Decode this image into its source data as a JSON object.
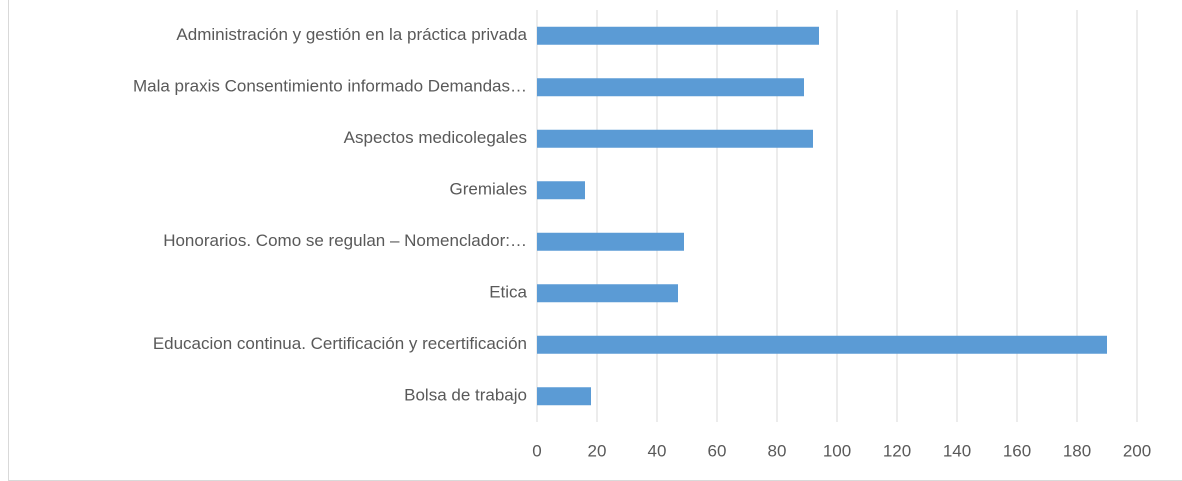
{
  "chart_data": {
    "type": "bar",
    "orientation": "horizontal",
    "categories": [
      "Administración y gestión en la práctica privada",
      "Mala praxis Consentimiento informado Demandas…",
      "Aspectos medicolegales",
      "Gremiales",
      "Honorarios. Como se regulan – Nomenclador:…",
      "Etica",
      "Educacion continua. Certificación y recertificación",
      "Bolsa de trabajo"
    ],
    "values": [
      94,
      89,
      92,
      16,
      49,
      47,
      190,
      18
    ],
    "color": "#5b9bd5",
    "xlim": [
      0,
      200
    ],
    "xticks": [
      0,
      20,
      40,
      60,
      80,
      100,
      120,
      140,
      160,
      180,
      200
    ],
    "grid": true
  }
}
